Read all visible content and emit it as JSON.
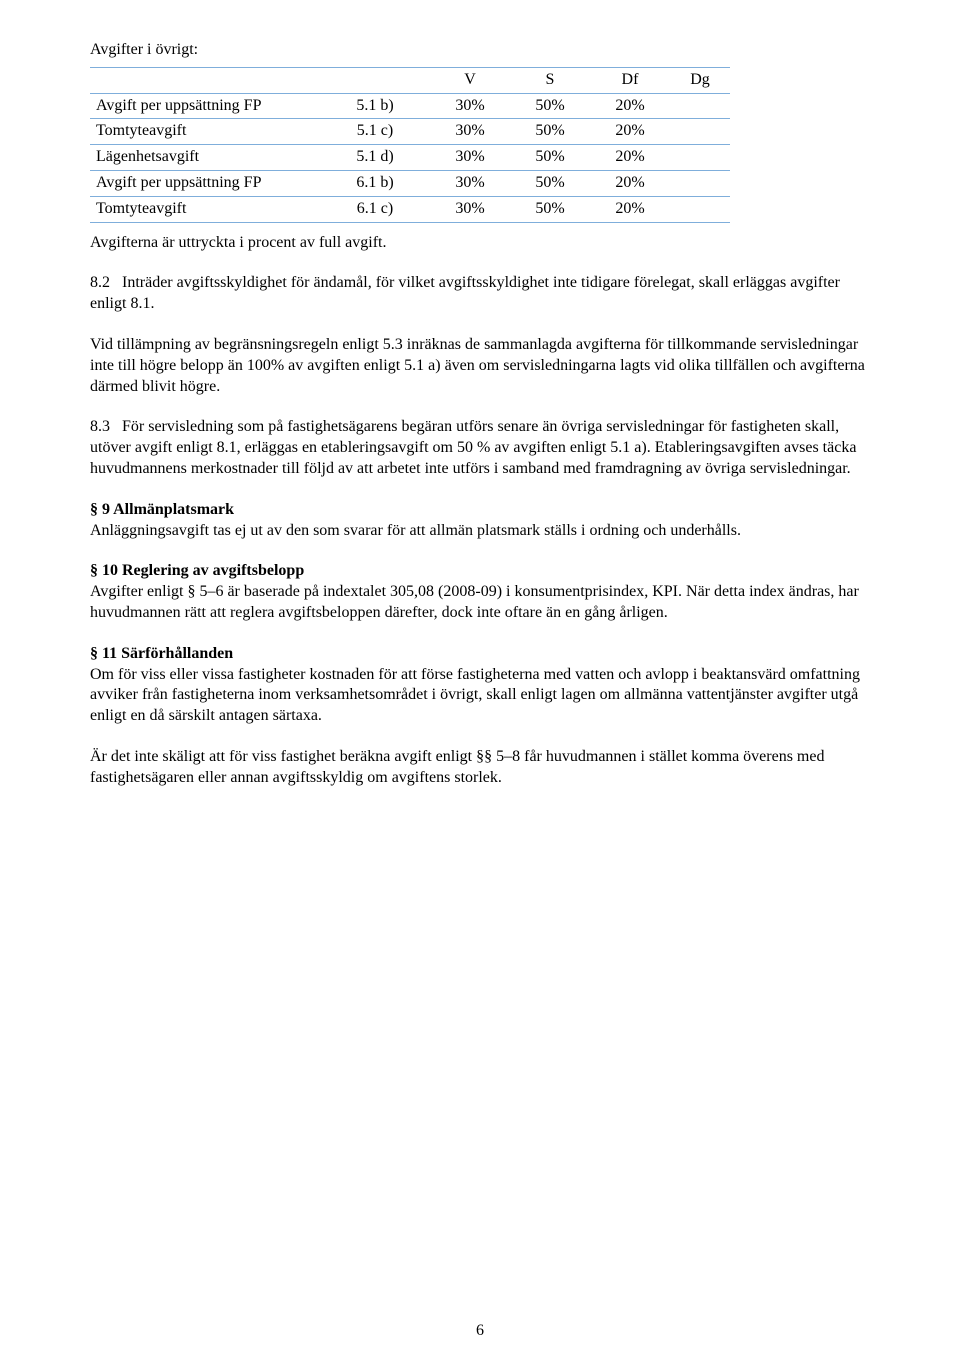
{
  "intro": "Avgifter i övrigt:",
  "table": {
    "border_color": "#7faedb",
    "headers": {
      "v": "V",
      "s": "S",
      "df": "Df",
      "dg": "Dg"
    },
    "rows": [
      {
        "label": "Avgift per uppsättning FP",
        "ref": "5.1 b)",
        "v": "30%",
        "s": "50%",
        "df": "20%",
        "dg": ""
      },
      {
        "label": "Tomtyteavgift",
        "ref": "5.1 c)",
        "v": "30%",
        "s": "50%",
        "df": "20%",
        "dg": ""
      },
      {
        "label": "Lägenhetsavgift",
        "ref": "5.1 d)",
        "v": "30%",
        "s": "50%",
        "df": "20%",
        "dg": ""
      },
      {
        "label": "Avgift per uppsättning FP",
        "ref": "6.1 b)",
        "v": "30%",
        "s": "50%",
        "df": "20%",
        "dg": ""
      },
      {
        "label": "Tomtyteavgift",
        "ref": "6.1 c)",
        "v": "30%",
        "s": "50%",
        "df": "20%",
        "dg": ""
      }
    ]
  },
  "after_table": "Avgifterna är uttryckta i procent av full avgift.",
  "p8_2_num": "8.2",
  "p8_2": "Inträder avgiftsskyldighet för ändamål, för vilket avgiftsskyldighet inte tidigare förelegat, skall erläggas avgifter enligt 8.1.",
  "p_limit": "Vid tillämpning av begränsningsregeln enligt 5.3 inräknas de sammanlagda avgifterna för tillkommande servisledningar inte till högre belopp än 100% av avgiften enligt 5.1 a) även om servisledningarna lagts vid olika tillfällen och avgifterna därmed blivit högre.",
  "p8_3_num": "8.3",
  "p8_3": "För servisledning som på fastighetsägarens begäran utförs senare än övriga servisledningar för fastigheten skall, utöver avgift enligt 8.1, erläggas en etableringsavgift om 50 % av avgiften enligt 5.1 a). Etableringsavgiften avses täcka huvudmannens merkostnader till följd av att arbetet inte utförs i samband med framdragning av övriga servisledningar.",
  "s9_head": "§ 9   Allmänplatsmark",
  "s9_body": "Anläggningsavgift tas ej ut av den som svarar för att allmän platsmark ställs i ordning och underhålls.",
  "s10_head": "§ 10  Reglering av avgiftsbelopp",
  "s10_body": "Avgifter enligt § 5–6 är baserade på indextalet 305,08 (2008-09) i konsumentprisindex, KPI. När detta index ändras, har huvudmannen rätt att reglera avgiftsbeloppen därefter, dock inte oftare än en gång årligen.",
  "s11_head": "§ 11  Särförhållanden",
  "s11_body1": "Om för viss eller vissa fastigheter kostnaden för att förse fastigheterna med vatten och avlopp i beaktansvärd omfattning avviker från fastigheterna inom verksamhetsområdet i övrigt, skall enligt lagen om allmänna vattentjänster avgifter utgå enligt en då särskilt antagen särtaxa.",
  "s11_body2": "Är det inte skäligt att för viss fastighet beräkna avgift enligt §§ 5–8 får huvudmannen i stället komma överens med fastighetsägaren eller annan avgiftsskyldig om avgiftens storlek.",
  "page_number": "6"
}
